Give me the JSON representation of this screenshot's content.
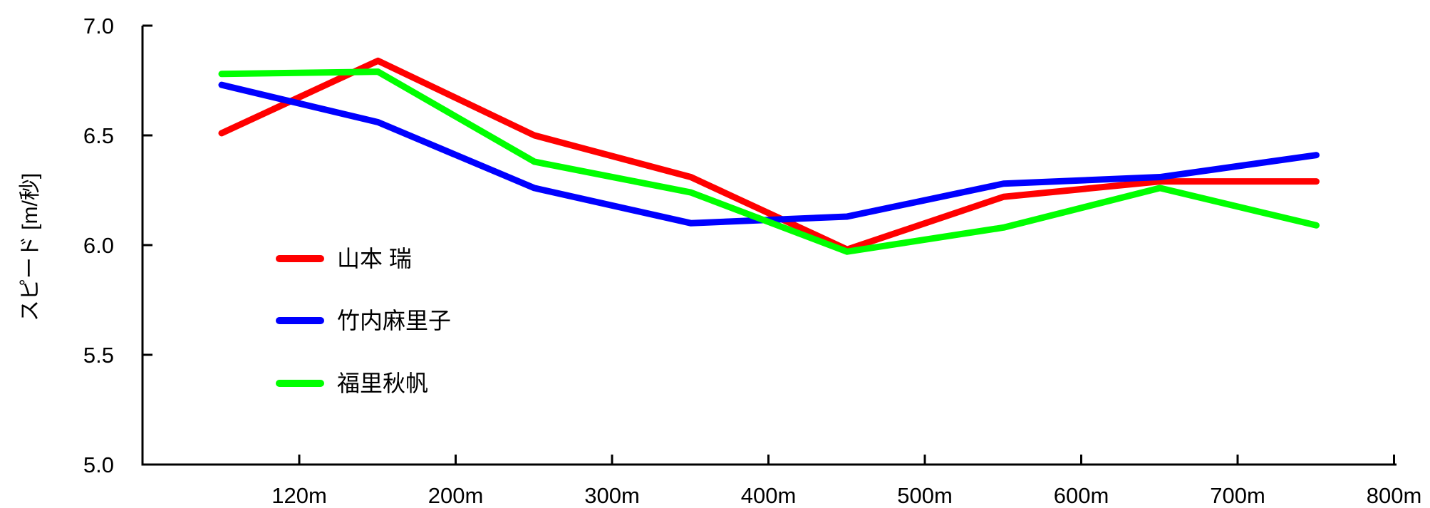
{
  "chart_data": {
    "type": "line",
    "title": "",
    "xlabel": "",
    "ylabel": "スピード [m/秒]",
    "ylim": [
      5.0,
      7.0
    ],
    "yticks": [
      "5.0",
      "5.5",
      "6.0",
      "6.5",
      "7.0"
    ],
    "xticks": [
      "120m",
      "200m",
      "300m",
      "400m",
      "500m",
      "600m",
      "700m",
      "800m"
    ],
    "grid": false,
    "legend_position": "center-left",
    "series": [
      {
        "name": "山本 瑞",
        "color": "#ff0000",
        "values": [
          6.51,
          6.84,
          6.5,
          6.31,
          5.98,
          6.22,
          6.29,
          6.29
        ]
      },
      {
        "name": "竹内麻里子",
        "color": "#0000ff",
        "values": [
          6.73,
          6.56,
          6.26,
          6.1,
          6.13,
          6.28,
          6.31,
          6.41
        ]
      },
      {
        "name": "福里秋帆",
        "color": "#00ff00",
        "values": [
          6.78,
          6.79,
          6.38,
          6.24,
          5.97,
          6.08,
          6.26,
          6.09
        ]
      }
    ]
  }
}
